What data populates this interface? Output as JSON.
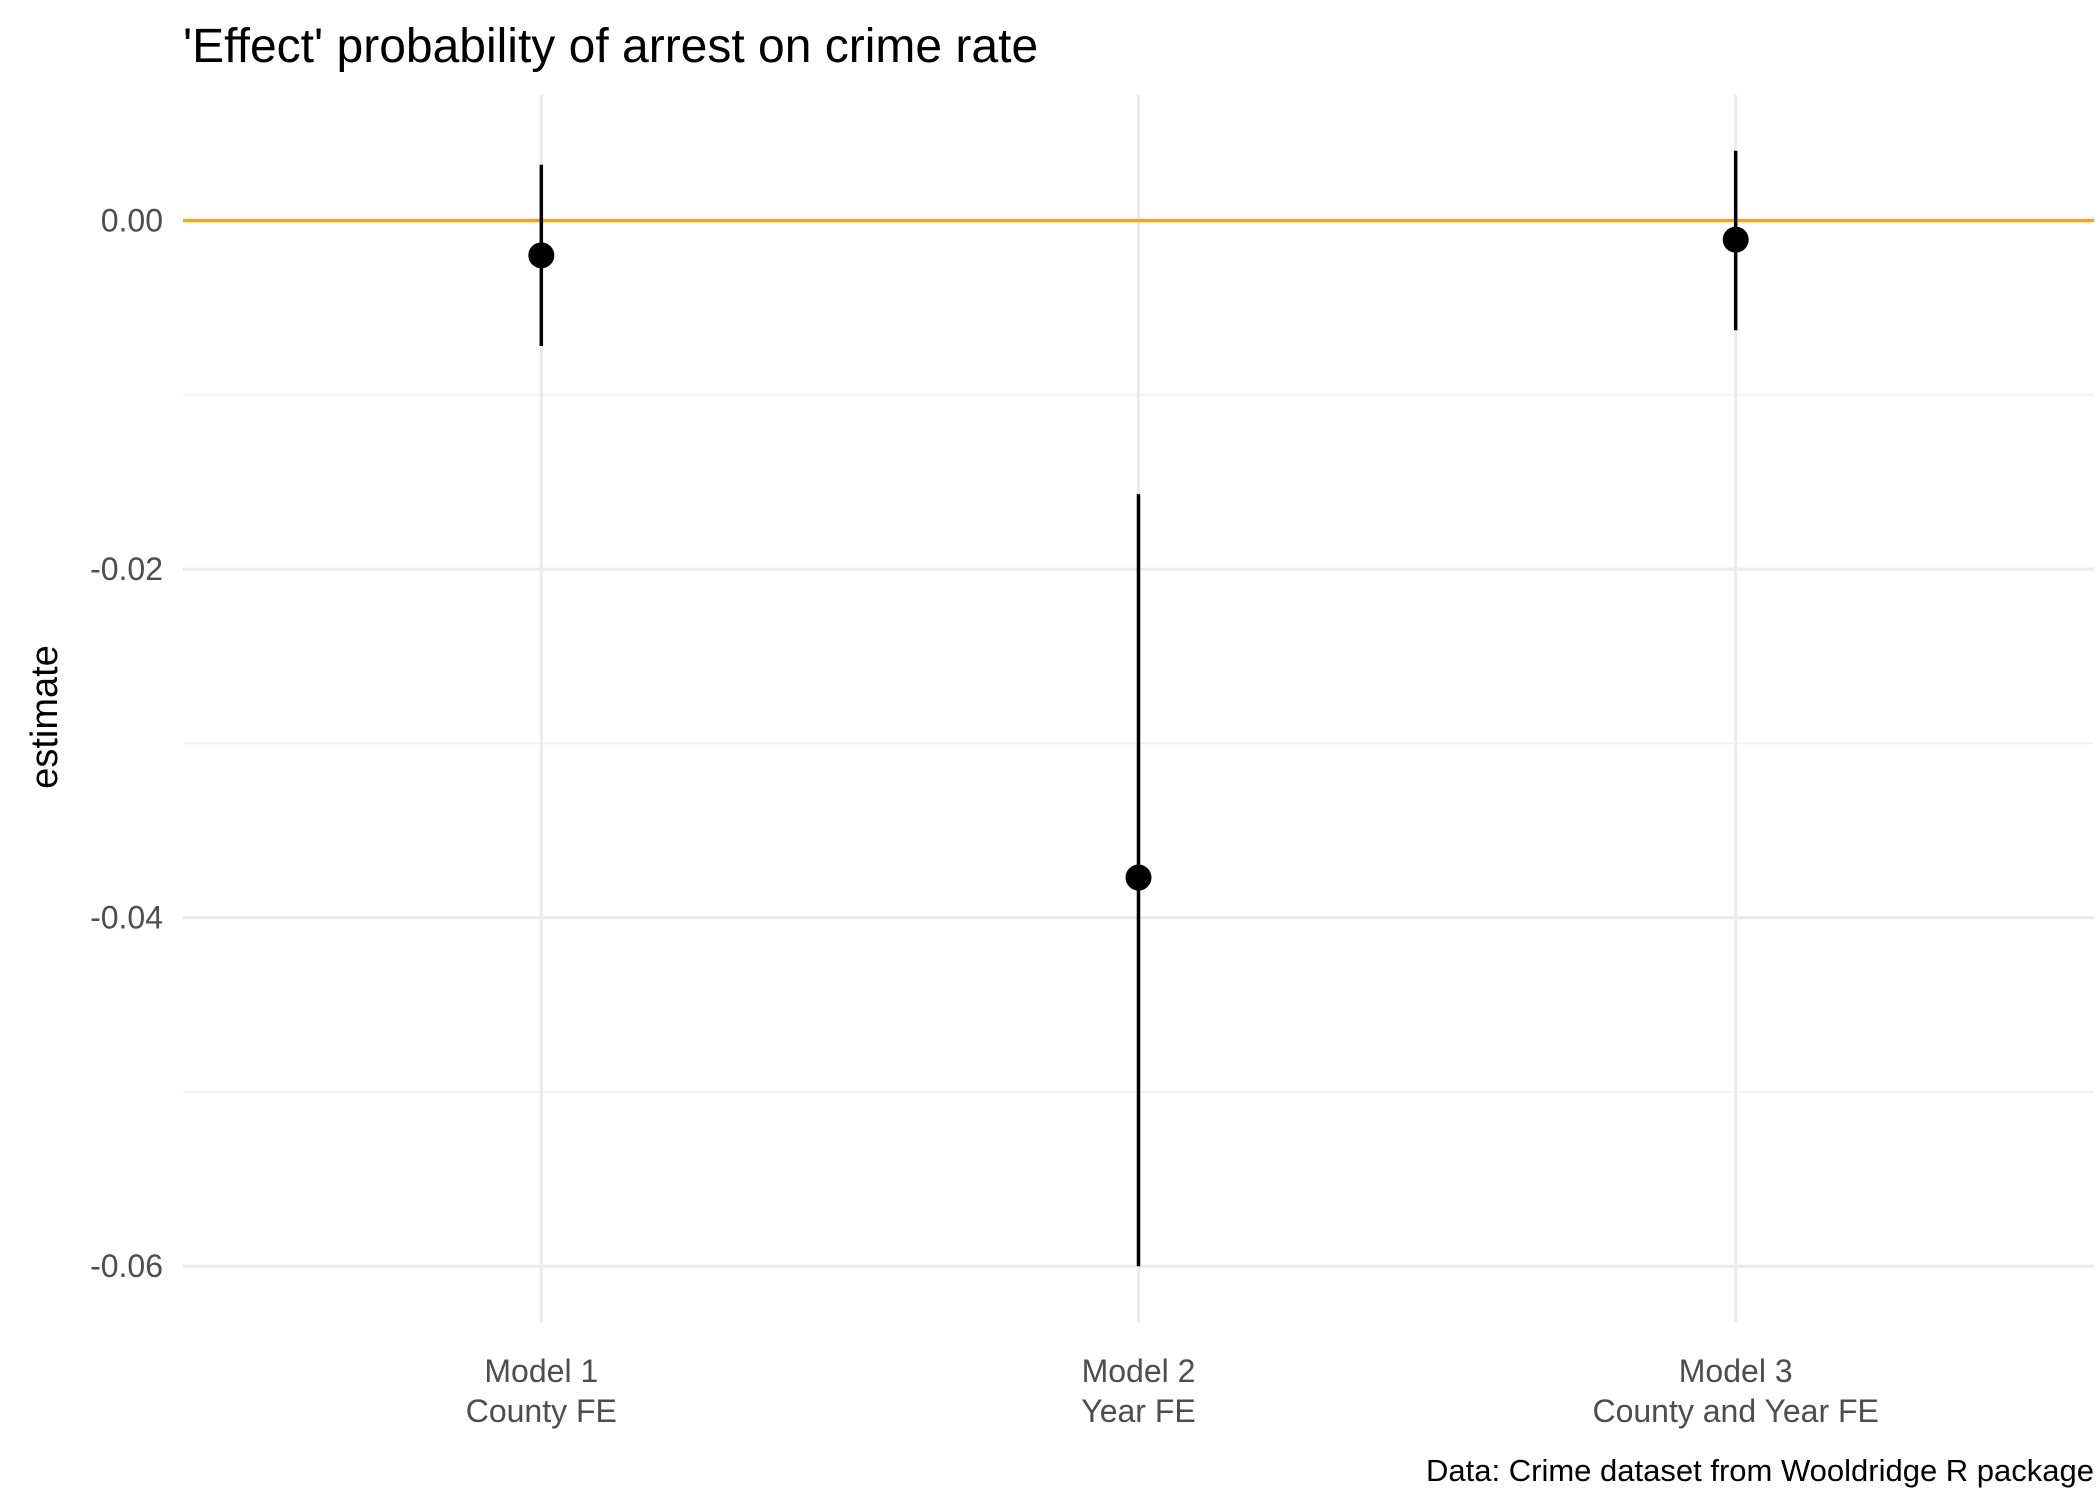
{
  "chart_data": {
    "type": "pointrange",
    "title": "'Effect' probability of arrest on crime rate",
    "xlabel": "",
    "ylabel": "estimate",
    "caption": "Data: Crime dataset from Wooldridge R package",
    "categories": [
      {
        "line1": "Model 1",
        "line2": "County FE"
      },
      {
        "line1": "Model 2",
        "line2": "Year FE"
      },
      {
        "line1": "Model 3",
        "line2": "County and Year FE"
      }
    ],
    "estimates": [
      -0.002,
      -0.0377,
      -0.0011
    ],
    "conf_low": [
      -0.0072,
      -0.06,
      -0.0063
    ],
    "conf_high": [
      0.0032,
      -0.0157,
      0.004
    ],
    "ylim": [
      -0.0632,
      0.0072
    ],
    "yticks": [
      0.0,
      -0.02,
      -0.04,
      -0.06
    ],
    "ytick_labels": [
      "0.00",
      "-0.02",
      "-0.04",
      "-0.06"
    ],
    "reference_line": {
      "value": 0,
      "color": "#FFA500"
    },
    "point_color": "#000000",
    "grid": true
  }
}
